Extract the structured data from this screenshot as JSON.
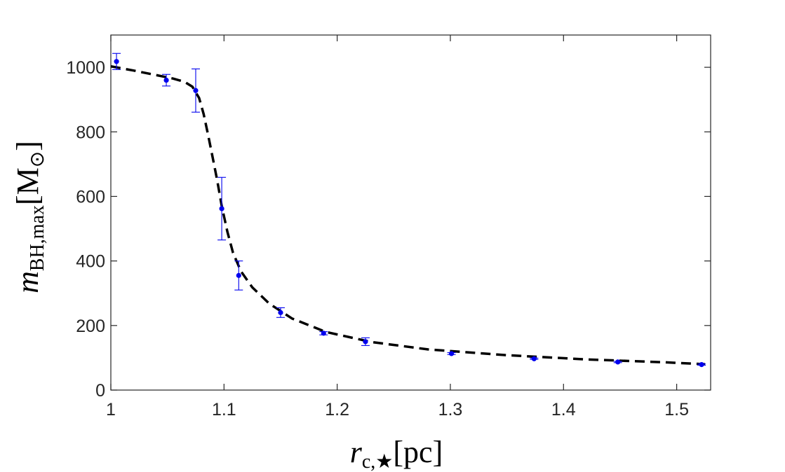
{
  "chart_data": {
    "type": "scatter",
    "title": "",
    "xlabel": {
      "main": "r",
      "sub": "c,★",
      "unit": "[pc]"
    },
    "ylabel": {
      "main": "m",
      "sub": "BH,max",
      "unit": "[M",
      "unit_sub": "⊙",
      "unit_close": "]"
    },
    "xlim": [
      1.0,
      1.53
    ],
    "ylim": [
      0,
      1100
    ],
    "x_ticks": [
      1,
      1.1,
      1.2,
      1.3,
      1.4,
      1.5
    ],
    "x_tick_labels": [
      "1",
      "1.1",
      "1.2",
      "1.3",
      "1.4",
      "1.5"
    ],
    "y_ticks": [
      0,
      200,
      400,
      600,
      800,
      1000
    ],
    "y_tick_labels": [
      "0",
      "200",
      "400",
      "600",
      "800",
      "1000"
    ],
    "grid": false,
    "series": [
      {
        "kind": "points_with_errorbars",
        "color": "#0000ee",
        "points": [
          {
            "x": 1.005,
            "y": 1018,
            "err": 25
          },
          {
            "x": 1.049,
            "y": 960,
            "err": 18
          },
          {
            "x": 1.075,
            "y": 928,
            "err": 67
          },
          {
            "x": 1.098,
            "y": 562,
            "err": 97
          },
          {
            "x": 1.113,
            "y": 355,
            "err": 45
          },
          {
            "x": 1.15,
            "y": 240,
            "err": 15
          },
          {
            "x": 1.188,
            "y": 176,
            "err": 5
          },
          {
            "x": 1.225,
            "y": 150,
            "err": 12
          },
          {
            "x": 1.301,
            "y": 113,
            "err": 3
          },
          {
            "x": 1.374,
            "y": 97,
            "err": 2
          },
          {
            "x": 1.448,
            "y": 87,
            "err": 2
          },
          {
            "x": 1.522,
            "y": 79,
            "err": 2
          }
        ]
      },
      {
        "kind": "fit_curve",
        "style": "dashed",
        "color": "#000000",
        "x": [
          1.0,
          1.02,
          1.04,
          1.055,
          1.065,
          1.072,
          1.078,
          1.082,
          1.086,
          1.09,
          1.094,
          1.098,
          1.103,
          1.108,
          1.115,
          1.125,
          1.14,
          1.16,
          1.19,
          1.23,
          1.28,
          1.35,
          1.42,
          1.49,
          1.525
        ],
        "y": [
          1003,
          990,
          976,
          965,
          955,
          940,
          905,
          855,
          790,
          720,
          650,
          570,
          490,
          425,
          368,
          318,
          268,
          222,
          180,
          149,
          126,
          108,
          95,
          86,
          80
        ]
      }
    ]
  }
}
